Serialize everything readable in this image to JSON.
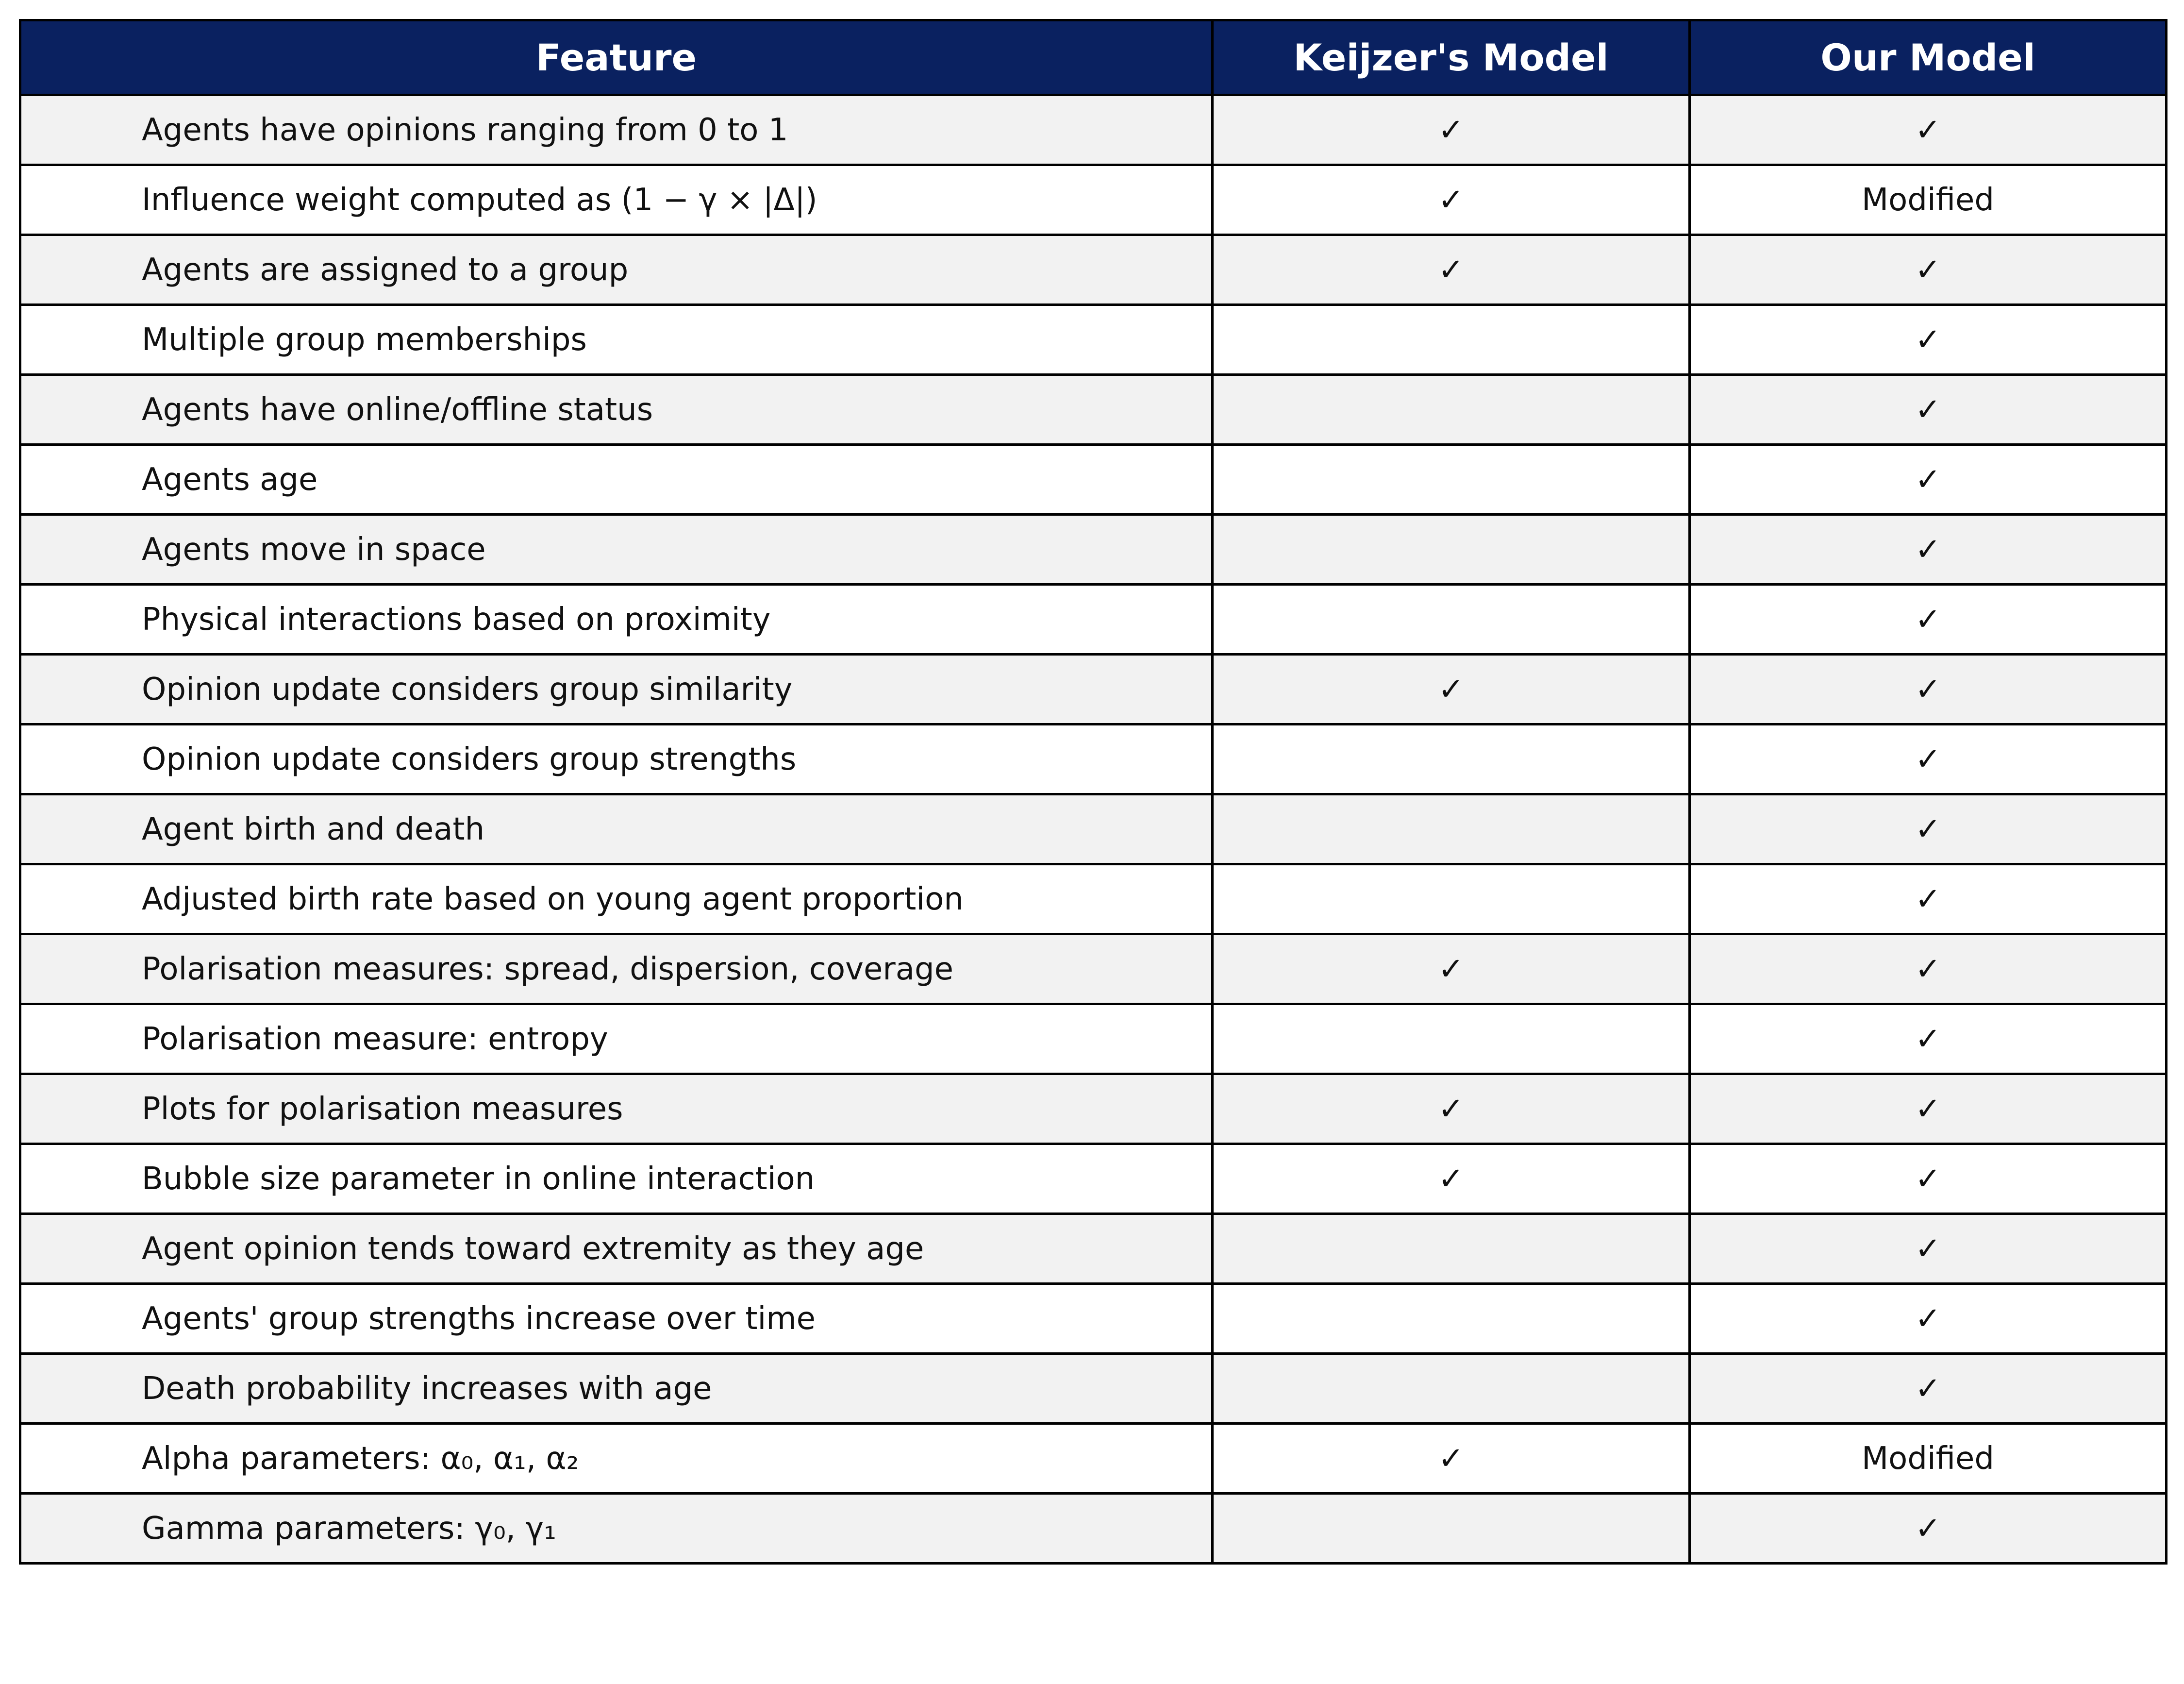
{
  "chart_data": {
    "type": "table",
    "columns": [
      "Feature",
      "Keijzer's Model",
      "Our Model"
    ],
    "rows": [
      {
        "feature": "Agents have opinions ranging from 0 to 1",
        "keijzer": "✓",
        "ours": "✓"
      },
      {
        "feature": "Influence weight computed as (1 − γ × |Δ|)",
        "keijzer": "✓",
        "ours": "Modified"
      },
      {
        "feature": "Agents are assigned to a group",
        "keijzer": "✓",
        "ours": "✓"
      },
      {
        "feature": "Multiple group memberships",
        "keijzer": "",
        "ours": "✓"
      },
      {
        "feature": "Agents have online/offline status",
        "keijzer": "",
        "ours": "✓"
      },
      {
        "feature": "Agents age",
        "keijzer": "",
        "ours": "✓"
      },
      {
        "feature": "Agents move in space",
        "keijzer": "",
        "ours": "✓"
      },
      {
        "feature": "Physical interactions based on proximity",
        "keijzer": "",
        "ours": "✓"
      },
      {
        "feature": "Opinion update considers group similarity",
        "keijzer": "✓",
        "ours": "✓"
      },
      {
        "feature": "Opinion update considers group strengths",
        "keijzer": "",
        "ours": "✓"
      },
      {
        "feature": "Agent birth and death",
        "keijzer": "",
        "ours": "✓"
      },
      {
        "feature": "Adjusted birth rate based on young agent proportion",
        "keijzer": "",
        "ours": "✓"
      },
      {
        "feature": "Polarisation measures: spread, dispersion, coverage",
        "keijzer": "✓",
        "ours": "✓"
      },
      {
        "feature": "Polarisation measure: entropy",
        "keijzer": "",
        "ours": "✓"
      },
      {
        "feature": "Plots for polarisation measures",
        "keijzer": "✓",
        "ours": "✓"
      },
      {
        "feature": "Bubble size parameter in online interaction",
        "keijzer": "✓",
        "ours": "✓"
      },
      {
        "feature": "Agent opinion tends toward extremity as they age",
        "keijzer": "",
        "ours": "✓"
      },
      {
        "feature": "Agents' group strengths increase over time",
        "keijzer": "",
        "ours": "✓"
      },
      {
        "feature": "Death probability increases with age",
        "keijzer": "",
        "ours": "✓"
      },
      {
        "feature": "Alpha parameters: α₀, α₁, α₂",
        "keijzer": "✓",
        "ours": "Modified"
      },
      {
        "feature": "Gamma parameters: γ₀, γ₁",
        "keijzer": "",
        "ours": "✓"
      }
    ]
  },
  "colors": {
    "header_background": "#0a2160",
    "header_text": "#ffffff",
    "row_shade": "#f2f2f2",
    "row_plain": "#ffffff",
    "border": "#000000"
  }
}
